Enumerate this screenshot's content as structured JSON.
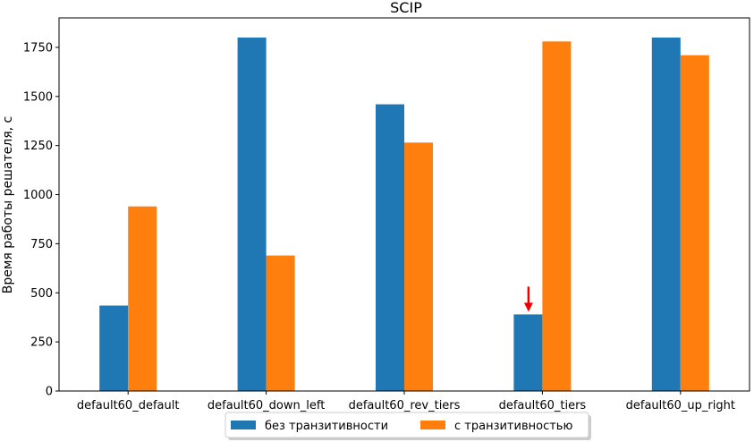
{
  "chart_data": {
    "type": "bar",
    "title": "SCIP",
    "xlabel": "",
    "ylabel": "Время работы решателя, с",
    "ylim": [
      0,
      1900
    ],
    "yticks": [
      0,
      250,
      500,
      750,
      1000,
      1250,
      1500,
      1750
    ],
    "categories": [
      "default60_default",
      "default60_down_left",
      "default60_rev_tiers",
      "default60_tiers",
      "default60_up_right"
    ],
    "series": [
      {
        "name": "без транзитивности",
        "color": "#1f77b4",
        "values": [
          435,
          1800,
          1460,
          390,
          1800
        ]
      },
      {
        "name": "с транзитивностью",
        "color": "#ff7f0e",
        "values": [
          940,
          690,
          1265,
          1780,
          1710
        ]
      }
    ],
    "annotations": [
      {
        "type": "arrow",
        "color": "#ee0000",
        "category": "default60_tiers",
        "series": 0
      }
    ],
    "legend_position": "bottom-center",
    "grid": false
  }
}
